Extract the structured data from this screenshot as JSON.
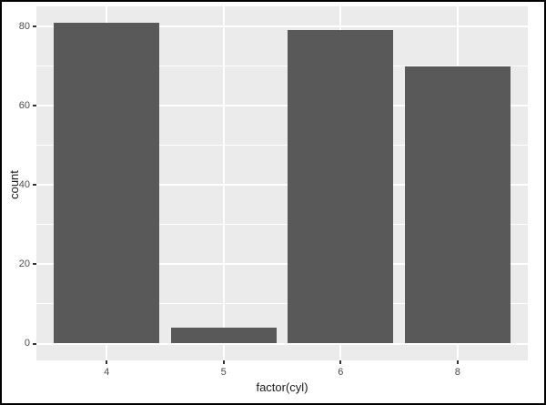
{
  "figure": {
    "background": "#FFFFFF",
    "frame_color": "#000000"
  },
  "chart_data": {
    "type": "bar",
    "title": "",
    "xlabel": "factor(cyl)",
    "ylabel": "count",
    "categories": [
      "4",
      "5",
      "6",
      "8"
    ],
    "values": [
      81,
      4,
      79,
      70
    ],
    "ylim": [
      0,
      81
    ],
    "yticks": [
      0,
      20,
      40,
      60,
      80
    ],
    "y_minor_gridlines": [
      10,
      30,
      50,
      70
    ],
    "grid": "on",
    "legend": "none",
    "bar_color": "#595959",
    "panel_background": "#EBEBEB",
    "gridline_color": "#FFFFFF",
    "tick_label_color": "#4D4D4D",
    "tick_mark_color": "#333333",
    "axis_title_color": "#1A1A1A"
  }
}
